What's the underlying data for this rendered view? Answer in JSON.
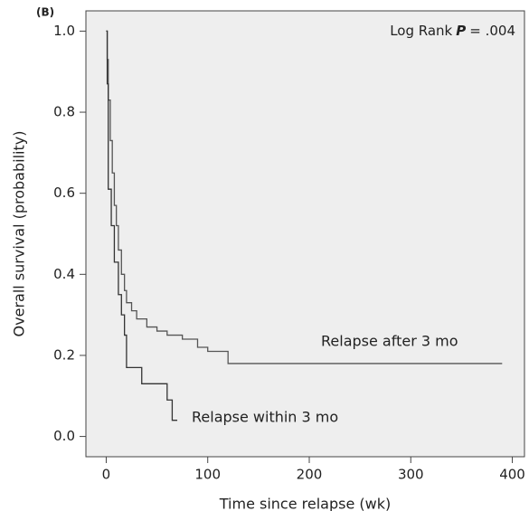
{
  "chart_data": {
    "type": "step",
    "panel_label": "(B)",
    "annotation": {
      "prefix": "Log Rank",
      "symbol": "P",
      "value": "= .004"
    },
    "x_label": "Time since relapse (wk)",
    "y_label": "Overall survival (probability)",
    "series": [
      {
        "name": "Relapse after 3 mo",
        "color": "#555555",
        "x": [
          0,
          1,
          2,
          4,
          6,
          8,
          10,
          12,
          15,
          18,
          20,
          25,
          30,
          40,
          50,
          60,
          75,
          90,
          100,
          120,
          390
        ],
        "values": [
          1.0,
          0.93,
          0.83,
          0.73,
          0.65,
          0.57,
          0.52,
          0.46,
          0.4,
          0.36,
          0.33,
          0.31,
          0.29,
          0.27,
          0.26,
          0.25,
          0.24,
          0.22,
          0.21,
          0.18,
          0.18
        ]
      },
      {
        "name": "Relapse within 3 mo",
        "color": "#333333",
        "x": [
          0,
          1,
          2,
          5,
          8,
          12,
          15,
          18,
          20,
          35,
          60,
          65,
          70
        ],
        "values": [
          1.0,
          0.87,
          0.61,
          0.52,
          0.43,
          0.35,
          0.3,
          0.25,
          0.17,
          0.13,
          0.09,
          0.04,
          0.04
        ]
      }
    ],
    "xlim": [
      -20,
      412
    ],
    "ylim": [
      -0.05,
      1.05
    ],
    "xticks": [
      0,
      100,
      200,
      300,
      400
    ],
    "yticks": [
      {
        "value": 0,
        "label": "0.0"
      },
      0.2,
      0.4,
      0.6,
      0.8,
      {
        "value": 1,
        "label": "1.0"
      }
    ],
    "background": "#eeeeee"
  }
}
